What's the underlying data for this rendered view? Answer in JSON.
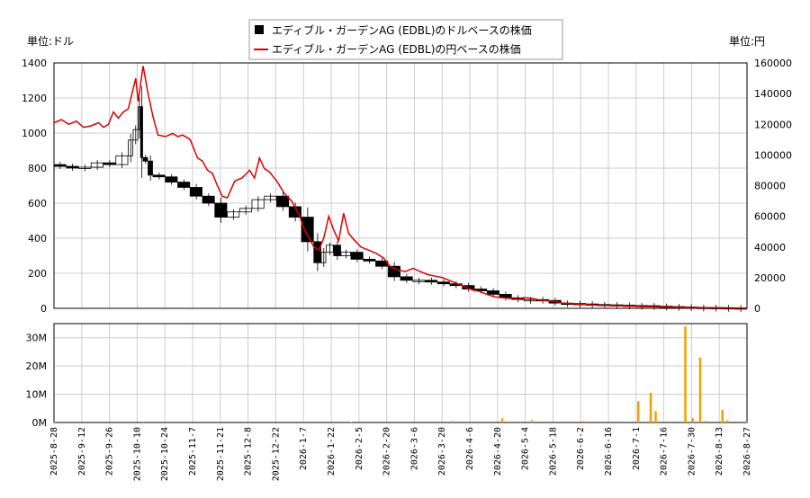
{
  "chart_data": {
    "type": "candlestick+line+bar",
    "legend": [
      {
        "name": "エディブル・ガーデンAG (EDBL)のドルベースの株価",
        "color": "#000000",
        "marker": "square"
      },
      {
        "name": "エディブル・ガーデンAG (EDBL)の円ベースの株価",
        "color": "#dd0000",
        "marker": "line"
      }
    ],
    "left_unit": "単位:ドル",
    "right_unit": "単位:円",
    "left_ylim": [
      0,
      1400
    ],
    "right_ylim": [
      0,
      160000
    ],
    "left_ticks": [
      "0",
      "200",
      "400",
      "600",
      "800",
      "1000",
      "1200",
      "1400"
    ],
    "right_ticks": [
      "0",
      "20000",
      "40000",
      "60000",
      "80000",
      "100000",
      "120000",
      "140000",
      "160000"
    ],
    "volume_ylim": [
      0,
      35
    ],
    "volume_ticks": [
      "0M",
      "10M",
      "20M",
      "30M"
    ],
    "x_ticks": [
      "2025-8-28",
      "2025-9-12",
      "2025-9-26",
      "2025-10-10",
      "2025-10-24",
      "2025-11-7",
      "2025-11-21",
      "2025-12-8",
      "2025-12-22",
      "2026-1-7",
      "2026-1-22",
      "2026-2-5",
      "2026-2-20",
      "2026-3-6",
      "2026-3-20",
      "2026-4-6",
      "2026-4-20",
      "2026-5-4",
      "2026-5-18",
      "2026-6-2",
      "2026-6-16",
      "2026-7-1",
      "2026-7-16",
      "2026-7-30",
      "2026-8-13",
      "2026-8-27"
    ],
    "usd_close_points": [
      [
        0,
        820
      ],
      [
        5,
        810
      ],
      [
        10,
        800
      ],
      [
        15,
        805
      ],
      [
        20,
        830
      ],
      [
        25,
        820
      ],
      [
        30,
        870
      ],
      [
        32,
        960
      ],
      [
        34,
        1020
      ],
      [
        35,
        1150
      ],
      [
        36,
        860
      ],
      [
        38,
        840
      ],
      [
        40,
        760
      ],
      [
        45,
        750
      ],
      [
        50,
        720
      ],
      [
        55,
        690
      ],
      [
        60,
        640
      ],
      [
        65,
        600
      ],
      [
        70,
        520
      ],
      [
        75,
        550
      ],
      [
        80,
        570
      ],
      [
        85,
        620
      ],
      [
        90,
        640
      ],
      [
        95,
        580
      ],
      [
        100,
        520
      ],
      [
        105,
        380
      ],
      [
        108,
        260
      ],
      [
        110,
        320
      ],
      [
        113,
        360
      ],
      [
        116,
        300
      ],
      [
        120,
        320
      ],
      [
        125,
        280
      ],
      [
        130,
        270
      ],
      [
        135,
        240
      ],
      [
        140,
        180
      ],
      [
        145,
        160
      ],
      [
        150,
        160
      ],
      [
        155,
        150
      ],
      [
        160,
        140
      ],
      [
        165,
        130
      ],
      [
        170,
        110
      ],
      [
        175,
        100
      ],
      [
        180,
        80
      ],
      [
        185,
        60
      ],
      [
        190,
        50
      ],
      [
        195,
        50
      ],
      [
        200,
        45
      ],
      [
        205,
        30
      ],
      [
        210,
        28
      ],
      [
        215,
        25
      ],
      [
        220,
        22
      ],
      [
        225,
        20
      ],
      [
        230,
        18
      ],
      [
        235,
        16
      ],
      [
        240,
        15
      ],
      [
        245,
        12
      ],
      [
        250,
        10
      ],
      [
        255,
        8
      ],
      [
        260,
        6
      ],
      [
        265,
        5
      ],
      [
        270,
        4
      ],
      [
        275,
        3
      ],
      [
        280,
        2
      ]
    ],
    "jpy_close_points": [
      [
        0,
        121000
      ],
      [
        3,
        123000
      ],
      [
        6,
        120000
      ],
      [
        9,
        122000
      ],
      [
        12,
        118000
      ],
      [
        15,
        119000
      ],
      [
        18,
        121000
      ],
      [
        20,
        118000
      ],
      [
        22,
        120000
      ],
      [
        24,
        128000
      ],
      [
        26,
        124000
      ],
      [
        28,
        128000
      ],
      [
        30,
        130000
      ],
      [
        33,
        150000
      ],
      [
        34,
        135000
      ],
      [
        36,
        158000
      ],
      [
        38,
        140000
      ],
      [
        40,
        125000
      ],
      [
        42,
        113000
      ],
      [
        45,
        112000
      ],
      [
        48,
        114000
      ],
      [
        50,
        112000
      ],
      [
        52,
        113000
      ],
      [
        55,
        110000
      ],
      [
        58,
        98000
      ],
      [
        60,
        96000
      ],
      [
        62,
        90000
      ],
      [
        64,
        88000
      ],
      [
        66,
        80000
      ],
      [
        68,
        73000
      ],
      [
        70,
        72000
      ],
      [
        73,
        83000
      ],
      [
        76,
        85000
      ],
      [
        79,
        90000
      ],
      [
        81,
        85000
      ],
      [
        83,
        98000
      ],
      [
        85,
        91000
      ],
      [
        87,
        89000
      ],
      [
        90,
        83000
      ],
      [
        93,
        75000
      ],
      [
        96,
        70000
      ],
      [
        99,
        61000
      ],
      [
        101,
        52000
      ],
      [
        103,
        46000
      ],
      [
        105,
        40000
      ],
      [
        107,
        38000
      ],
      [
        109,
        46000
      ],
      [
        111,
        60000
      ],
      [
        113,
        51000
      ],
      [
        115,
        44000
      ],
      [
        117,
        62000
      ],
      [
        119,
        49000
      ],
      [
        121,
        45000
      ],
      [
        124,
        40000
      ],
      [
        127,
        38000
      ],
      [
        130,
        36000
      ],
      [
        133,
        33000
      ],
      [
        136,
        27000
      ],
      [
        139,
        25000
      ],
      [
        142,
        24000
      ],
      [
        145,
        26000
      ],
      [
        148,
        24000
      ],
      [
        151,
        22000
      ],
      [
        154,
        21000
      ],
      [
        157,
        20000
      ],
      [
        160,
        18000
      ],
      [
        163,
        16000
      ],
      [
        166,
        14000
      ],
      [
        169,
        12000
      ],
      [
        172,
        11000
      ],
      [
        175,
        9000
      ],
      [
        178,
        7500
      ],
      [
        181,
        7000
      ],
      [
        184,
        6500
      ],
      [
        187,
        6000
      ],
      [
        190,
        7000
      ],
      [
        193,
        6500
      ],
      [
        196,
        5500
      ],
      [
        199,
        5000
      ],
      [
        202,
        4500
      ],
      [
        205,
        3500
      ],
      [
        210,
        3000
      ],
      [
        215,
        2500
      ],
      [
        220,
        2000
      ],
      [
        225,
        1800
      ],
      [
        230,
        1500
      ],
      [
        235,
        1300
      ],
      [
        240,
        1100
      ],
      [
        245,
        900
      ],
      [
        250,
        700
      ],
      [
        255,
        600
      ],
      [
        260,
        500
      ],
      [
        265,
        400
      ],
      [
        270,
        300
      ],
      [
        275,
        250
      ],
      [
        280,
        200
      ]
    ],
    "volume_points": [
      [
        0,
        0.2
      ],
      [
        36,
        0.3
      ],
      [
        120,
        0.2
      ],
      [
        161,
        0.5
      ],
      [
        181,
        1.5
      ],
      [
        193,
        0.8
      ],
      [
        214,
        0.5
      ],
      [
        236,
        7.5
      ],
      [
        241,
        10.5
      ],
      [
        243,
        4
      ],
      [
        255,
        34
      ],
      [
        258,
        1.5
      ],
      [
        261,
        23
      ],
      [
        263,
        0.5
      ],
      [
        270,
        4.5
      ],
      [
        272,
        0.8
      ],
      [
        280,
        0.3
      ]
    ]
  }
}
